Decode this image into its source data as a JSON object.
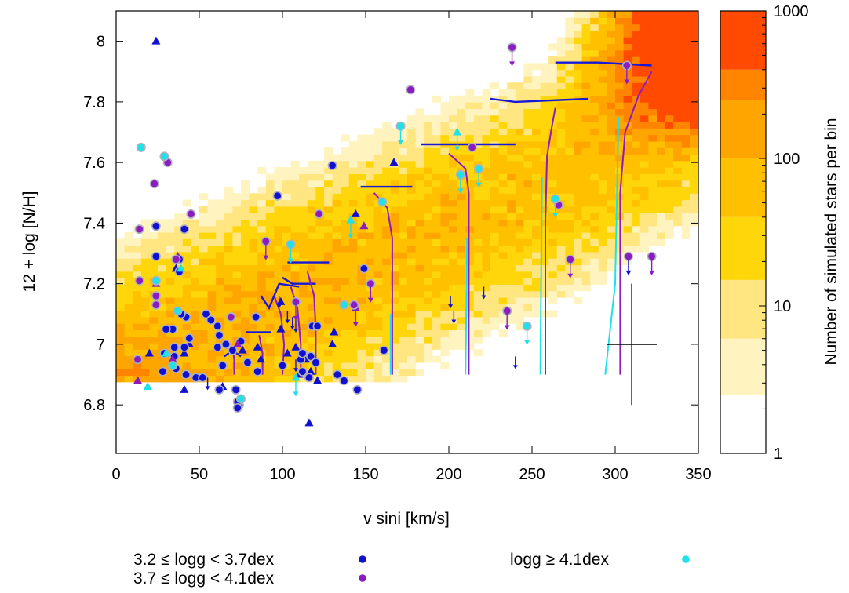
{
  "chart_data": {
    "type": "scatter",
    "xlabel": "v sini [km/s]",
    "ylabel": "12 + log [N/H]",
    "xlim": [
      0,
      350
    ],
    "ylim": [
      6.64,
      8.1
    ],
    "xticks": [
      "0",
      "50",
      "100",
      "150",
      "200",
      "250",
      "300",
      "350"
    ],
    "yticks": [
      "6.8",
      "7",
      "7.2",
      "7.4",
      "7.6",
      "7.8",
      "8"
    ],
    "colorbar": {
      "label": "Number of simulated stars per bin",
      "scale": "log",
      "range": [
        1,
        1000
      ],
      "ticks": [
        "1",
        "10",
        "100",
        "1000"
      ],
      "levels": [
        "#ffffff",
        "#fff3c0",
        "#ffe680",
        "#ffd60a",
        "#ffc000",
        "#ffa500",
        "#ff8400",
        "#ff4a00"
      ]
    },
    "legend": {
      "placement": "bottom",
      "entries": [
        {
          "label": "3.2 ≤ logg < 3.7dex",
          "color": "#1010d0"
        },
        {
          "label": "3.7 ≤ logg < 4.1dex",
          "color": "#8a1cc0"
        },
        {
          "label": "logg ≥ 4.1dex",
          "color": "#20e0e8"
        }
      ]
    },
    "error_bar": {
      "x": 310,
      "y": 7.0,
      "dx": 15,
      "dy": 0.2
    },
    "series": [
      {
        "group": "low",
        "color": "#1010d0",
        "circles": [
          [
            24,
            7.39
          ],
          [
            24,
            7.29
          ],
          [
            38,
            7.28
          ],
          [
            41,
            7.38
          ],
          [
            38,
            7.24
          ],
          [
            42,
            7.09
          ],
          [
            39,
            7.1
          ],
          [
            34,
            7.05
          ],
          [
            44,
            7.02
          ],
          [
            30,
            7.05
          ],
          [
            41,
            6.99
          ],
          [
            35,
            6.99
          ],
          [
            29,
            6.97
          ],
          [
            35,
            6.96
          ],
          [
            36,
            6.92
          ],
          [
            28,
            6.91
          ],
          [
            42,
            6.9
          ],
          [
            48,
            6.89
          ],
          [
            54,
            7.1
          ],
          [
            57,
            7.08
          ],
          [
            61,
            7.06
          ],
          [
            62,
            7.03
          ],
          [
            66,
            7.0
          ],
          [
            61,
            6.99
          ],
          [
            70,
            6.98
          ],
          [
            75,
            7.01
          ],
          [
            84,
            7.09
          ],
          [
            79,
            6.94
          ],
          [
            64,
            6.93
          ],
          [
            85,
            6.91
          ],
          [
            97,
            7.49
          ],
          [
            100,
            6.93
          ],
          [
            111,
            6.95
          ],
          [
            112,
            6.91
          ],
          [
            112,
            6.97
          ],
          [
            117,
            6.96
          ],
          [
            118,
            7.06
          ],
          [
            120,
            6.94
          ],
          [
            121,
            7.06
          ],
          [
            116,
            6.89
          ],
          [
            133,
            6.9
          ],
          [
            137,
            6.88
          ],
          [
            145,
            6.85
          ],
          [
            130,
            7.59
          ],
          [
            149,
            7.25
          ],
          [
            161,
            6.98
          ],
          [
            62,
            6.85
          ],
          [
            72,
            6.85
          ],
          [
            74,
            6.8
          ],
          [
            73,
            6.81
          ],
          [
            52,
            6.89
          ],
          [
            73,
            6.79
          ]
        ],
        "triangles": [
          [
            24,
            8.0
          ],
          [
            36,
            7.25
          ],
          [
            44,
            7.0
          ],
          [
            41,
            6.97
          ],
          [
            20,
            6.97
          ],
          [
            41,
            6.85
          ],
          [
            64,
            6.86
          ],
          [
            76,
            6.98
          ],
          [
            85,
            6.99
          ],
          [
            99,
            7.14
          ],
          [
            87,
            6.95
          ],
          [
            108,
            6.99
          ],
          [
            117,
            6.91
          ],
          [
            121,
            6.88
          ],
          [
            130,
            7.0
          ],
          [
            144,
            7.43
          ],
          [
            167,
            7.6
          ],
          [
            99,
            7.05
          ],
          [
            110,
            6.9
          ],
          [
            114,
            6.95
          ],
          [
            103,
            6.97
          ],
          [
            116,
            6.74
          ],
          [
            131,
            7.04
          ]
        ],
        "arrows": [
          [
            106,
            7.09
          ],
          [
            108,
            7.08
          ],
          [
            98,
            7.16
          ],
          [
            103,
            7.11
          ],
          [
            201,
            7.16
          ],
          [
            203,
            7.11
          ],
          [
            221,
            7.19
          ],
          [
            240,
            6.96
          ],
          [
            108,
            6.95
          ],
          [
            55,
            6.89
          ]
        ]
      },
      {
        "group": "mid",
        "color": "#8a1cc0",
        "circles": [
          [
            14,
            7.38
          ],
          [
            14,
            7.21
          ],
          [
            23,
            7.53
          ],
          [
            31,
            7.6
          ],
          [
            45,
            7.43
          ],
          [
            24,
            7.13
          ],
          [
            36,
            7.28
          ],
          [
            24,
            7.16
          ],
          [
            13,
            6.95
          ],
          [
            69,
            7.09
          ],
          [
            90,
            7.34
          ],
          [
            108,
            7.14
          ],
          [
            122,
            7.43
          ],
          [
            153,
            7.2
          ],
          [
            143,
            7.13
          ],
          [
            177,
            7.84
          ],
          [
            238,
            7.98
          ],
          [
            214,
            7.65
          ],
          [
            235,
            7.11
          ],
          [
            266,
            7.46
          ],
          [
            273,
            7.28
          ],
          [
            307,
            7.92
          ],
          [
            322,
            7.29
          ],
          [
            308,
            7.29
          ]
        ],
        "triangles": [
          [
            37,
            7.29
          ],
          [
            24,
            7.2
          ],
          [
            73,
            7.0
          ],
          [
            149,
            7.39
          ],
          [
            144,
            7.12
          ],
          [
            34,
            6.95
          ],
          [
            13,
            6.88
          ]
        ],
        "arrows": []
      },
      {
        "group": "high",
        "color": "#20e0e8",
        "circles": [
          [
            15,
            7.65
          ],
          [
            29,
            7.62
          ],
          [
            24,
            7.21
          ],
          [
            37,
            7.11
          ],
          [
            34,
            6.93
          ],
          [
            75,
            6.82
          ],
          [
            105,
            7.33
          ],
          [
            137,
            7.13
          ],
          [
            171,
            7.72
          ],
          [
            160,
            7.47
          ],
          [
            207,
            7.56
          ],
          [
            218,
            7.58
          ],
          [
            264,
            7.48
          ],
          [
            247,
            7.06
          ]
        ],
        "triangles": [
          [
            19,
            6.86
          ],
          [
            30,
            6.97
          ],
          [
            39,
            7.25
          ],
          [
            108,
            6.89
          ],
          [
            205,
            7.7
          ],
          [
            141,
            7.41
          ]
        ],
        "arrows": []
      }
    ],
    "tracks": [
      {
        "blue": [
          [
            65,
            6.96
          ],
          [
            70,
            6.98
          ],
          [
            75,
            6.96
          ]
        ],
        "purple": [
          [
            71,
            6.9
          ],
          [
            71,
            6.95
          ],
          [
            70,
            6.99
          ]
        ],
        "cyan": []
      },
      {
        "blue": [
          [
            78,
            7.04
          ],
          [
            85,
            7.04
          ],
          [
            93,
            7.04
          ]
        ],
        "purple": [
          [
            88,
            6.9
          ],
          [
            88,
            6.97
          ],
          [
            86,
            7.03
          ]
        ],
        "cyan": []
      },
      {
        "blue": [
          [
            87,
            7.16
          ],
          [
            92,
            7.12
          ],
          [
            98,
            7.2
          ],
          [
            110,
            7.19
          ]
        ],
        "purple": [
          [
            100,
            6.9
          ],
          [
            101,
            7.0
          ],
          [
            99,
            7.1
          ],
          [
            95,
            7.16
          ]
        ],
        "cyan": []
      },
      {
        "blue": [
          [
            100,
            7.22
          ],
          [
            106,
            7.2
          ],
          [
            120,
            7.2
          ]
        ],
        "purple": [
          [
            111,
            6.9
          ],
          [
            111,
            7.0
          ],
          [
            109,
            7.12
          ],
          [
            105,
            7.19
          ]
        ],
        "cyan": []
      },
      {
        "blue": [
          [
            103,
            7.27
          ],
          [
            112,
            7.27
          ],
          [
            128,
            7.27
          ]
        ],
        "purple": [
          [
            120,
            6.9
          ],
          [
            120,
            7.05
          ],
          [
            119,
            7.16
          ],
          [
            115,
            7.24
          ]
        ],
        "cyan": []
      },
      {
        "blue": [
          [
            147,
            7.52
          ],
          [
            155,
            7.52
          ],
          [
            178,
            7.52
          ]
        ],
        "purple": [
          [
            166,
            6.9
          ],
          [
            166,
            7.2
          ],
          [
            166,
            7.35
          ],
          [
            163,
            7.45
          ],
          [
            155,
            7.5
          ]
        ],
        "cyan": [
          [
            165,
            6.9
          ],
          [
            165,
            7.1
          ]
        ]
      },
      {
        "blue": [
          [
            183,
            7.66
          ],
          [
            195,
            7.66
          ],
          [
            240,
            7.66
          ]
        ],
        "purple": [
          [
            212,
            6.9
          ],
          [
            212,
            7.3
          ],
          [
            212,
            7.5
          ],
          [
            210,
            7.58
          ],
          [
            200,
            7.63
          ]
        ],
        "cyan": [
          [
            210,
            6.9
          ],
          [
            211,
            7.35
          ]
        ]
      },
      {
        "blue": [
          [
            225,
            7.81
          ],
          [
            240,
            7.8
          ],
          [
            284,
            7.81
          ]
        ],
        "purple": [
          [
            258,
            6.9
          ],
          [
            258,
            7.4
          ],
          [
            259,
            7.62
          ],
          [
            262,
            7.72
          ],
          [
            264,
            7.78
          ]
        ],
        "cyan": [
          [
            255,
            6.9
          ],
          [
            256,
            7.55
          ]
        ]
      },
      {
        "blue": [
          [
            264,
            7.93
          ],
          [
            290,
            7.93
          ],
          [
            322,
            7.92
          ]
        ],
        "purple": [
          [
            303,
            6.9
          ],
          [
            303,
            7.5
          ],
          [
            306,
            7.7
          ],
          [
            314,
            7.82
          ],
          [
            322,
            7.9
          ]
        ],
        "cyan": [
          [
            294,
            6.9
          ],
          [
            300,
            7.2
          ],
          [
            302,
            7.75
          ]
        ]
      }
    ]
  }
}
